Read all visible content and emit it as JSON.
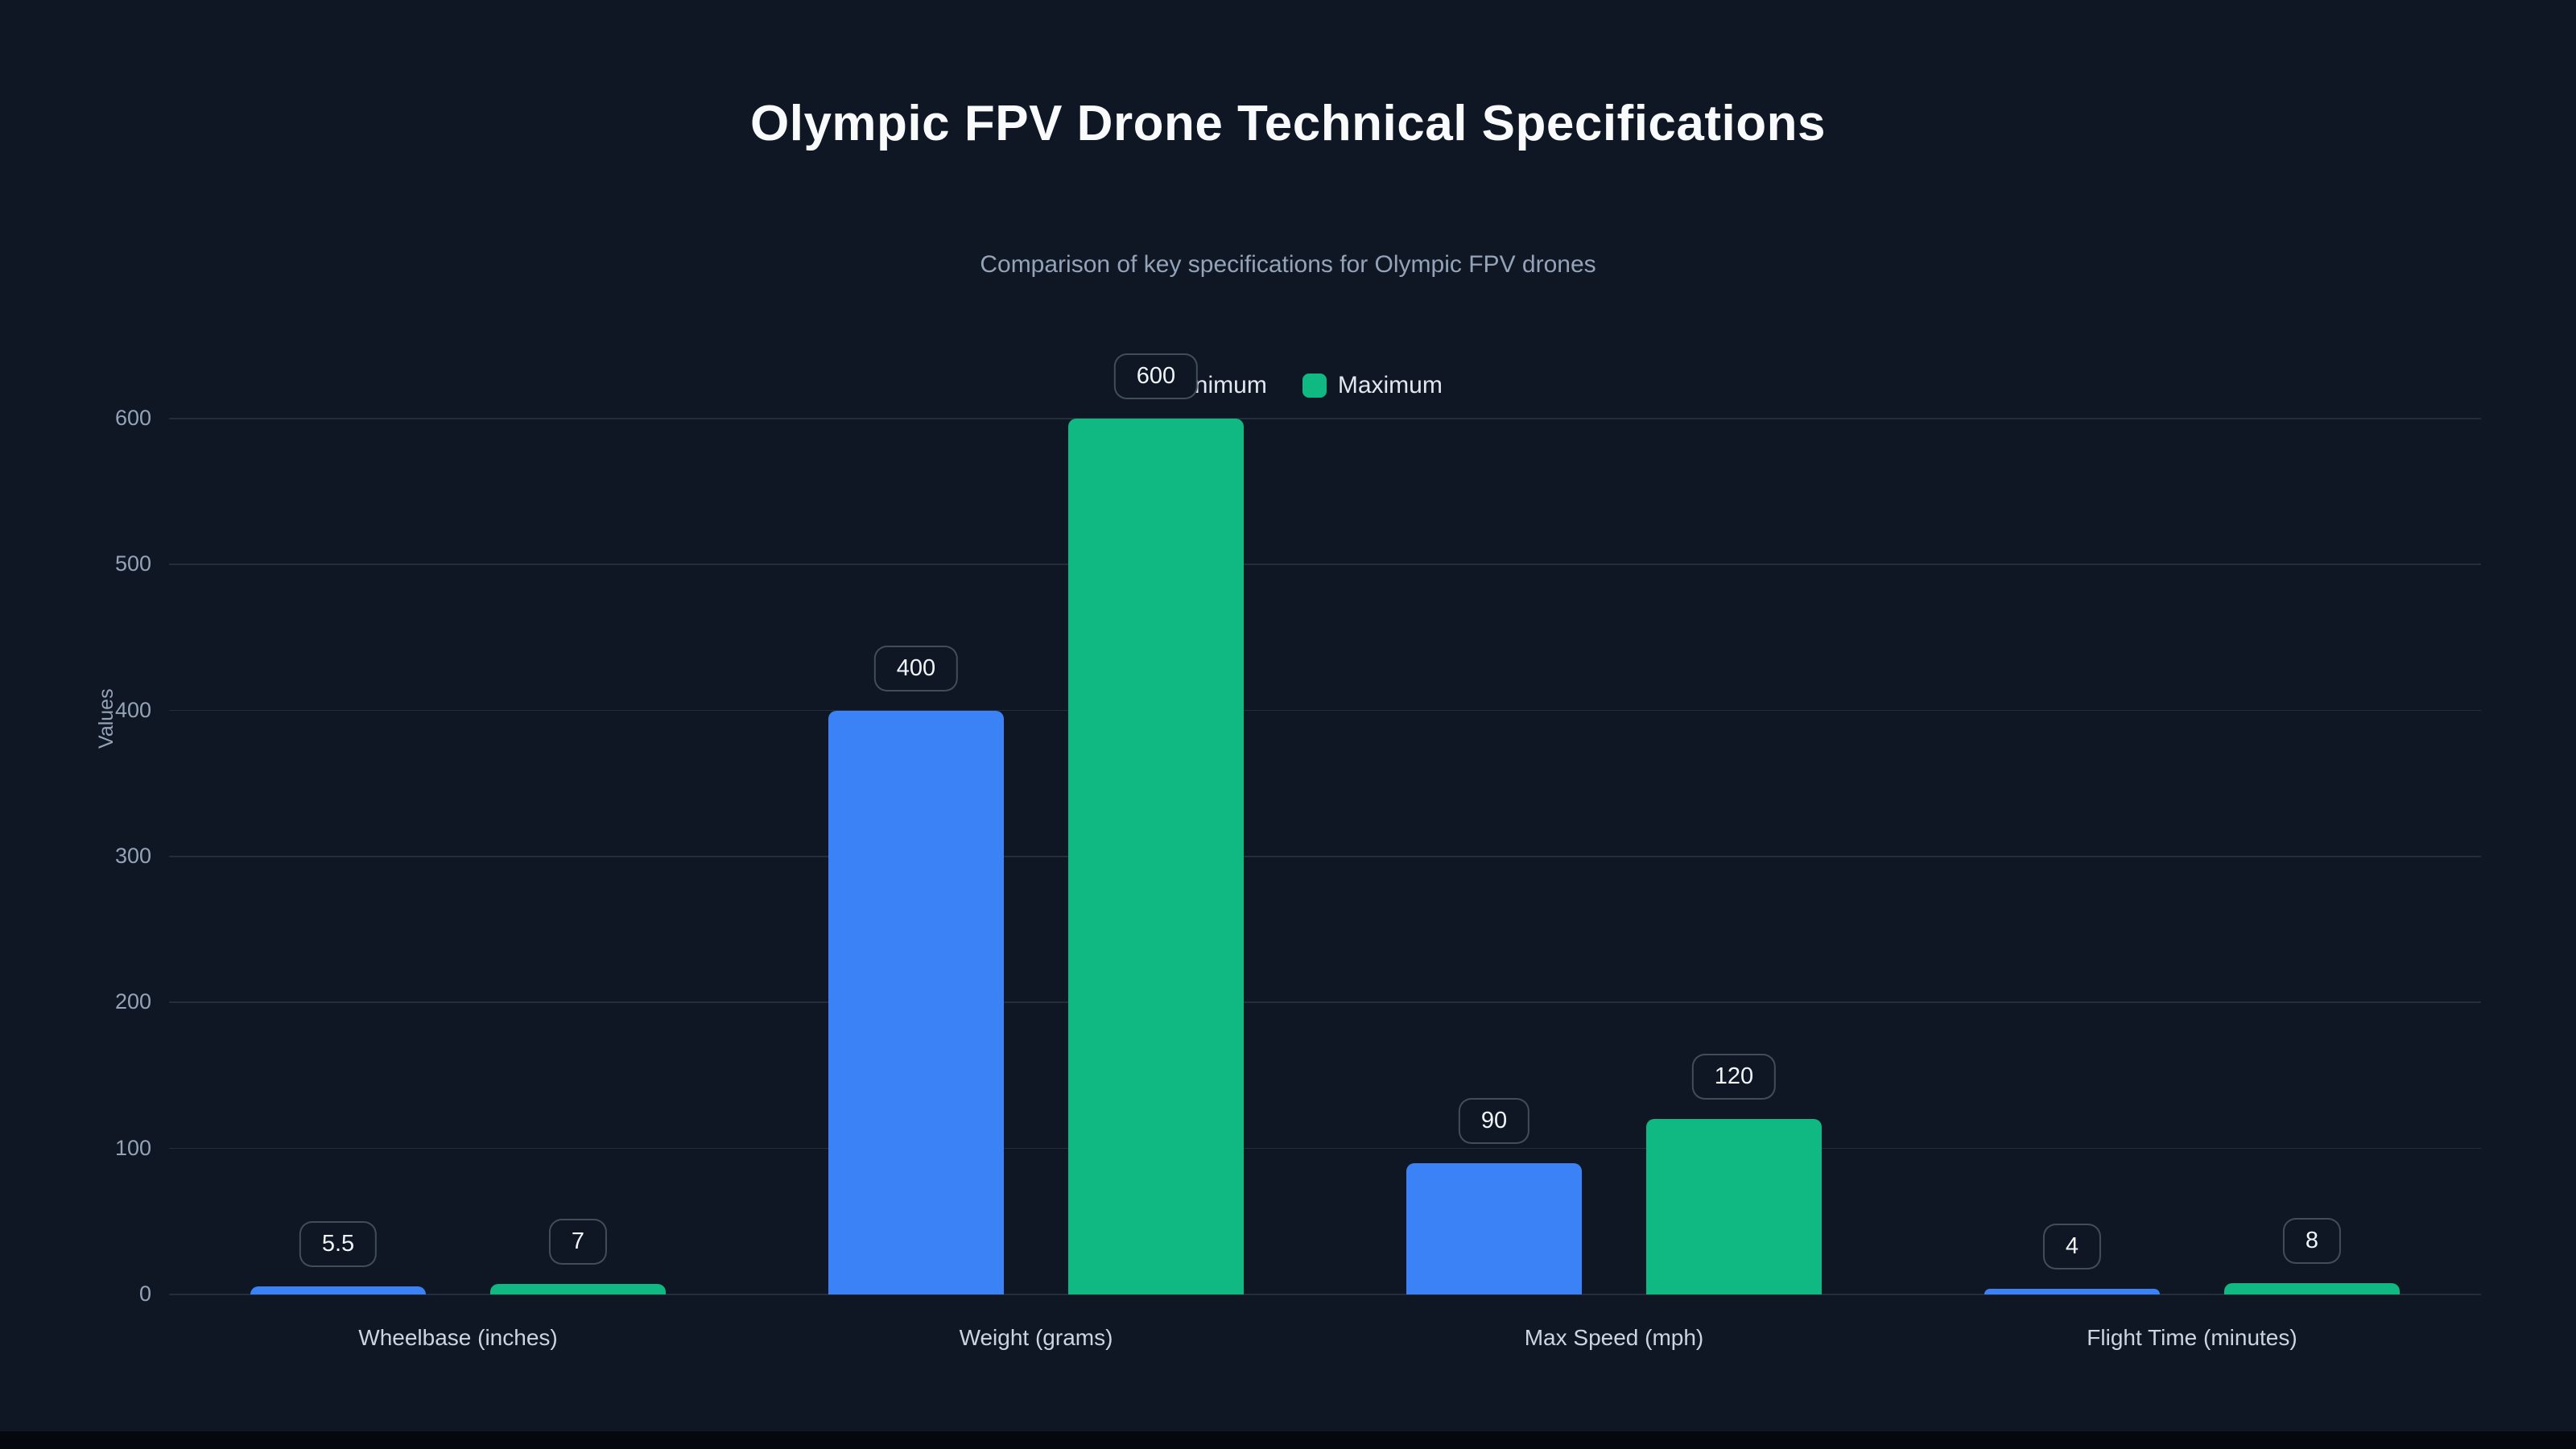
{
  "page": {
    "background": "#0f1724"
  },
  "chart_data": {
    "type": "bar",
    "title": "Olympic FPV Drone Technical Specifications",
    "subtitle": "Comparison of key specifications for Olympic FPV drones",
    "ylabel": "Values",
    "xlabel": "",
    "categories": [
      "Wheelbase (inches)",
      "Weight (grams)",
      "Max Speed (mph)",
      "Flight Time (minutes)"
    ],
    "series": [
      {
        "name": "Minimum",
        "color": "#3b82f6",
        "values": [
          5.5,
          400,
          90,
          4
        ],
        "labels": [
          "5.5",
          "400",
          "90",
          "4"
        ]
      },
      {
        "name": "Maximum",
        "color": "#10b981",
        "values": [
          7,
          600,
          120,
          8
        ],
        "labels": [
          "7",
          "600",
          "120",
          "8"
        ]
      }
    ],
    "ylim": [
      0,
      600
    ],
    "yticks": [
      0,
      100,
      200,
      300,
      400,
      500,
      600
    ],
    "grid": true,
    "legend_position": "top-center",
    "colors": {
      "background": "#0f1724",
      "grid": "rgba(148,163,184,0.16)",
      "title": "#f8fafc",
      "subtitle": "#94a3b8",
      "tick": "#94a3b8",
      "category": "#cbd5e1",
      "value_label_text": "#f1f5f9"
    }
  }
}
